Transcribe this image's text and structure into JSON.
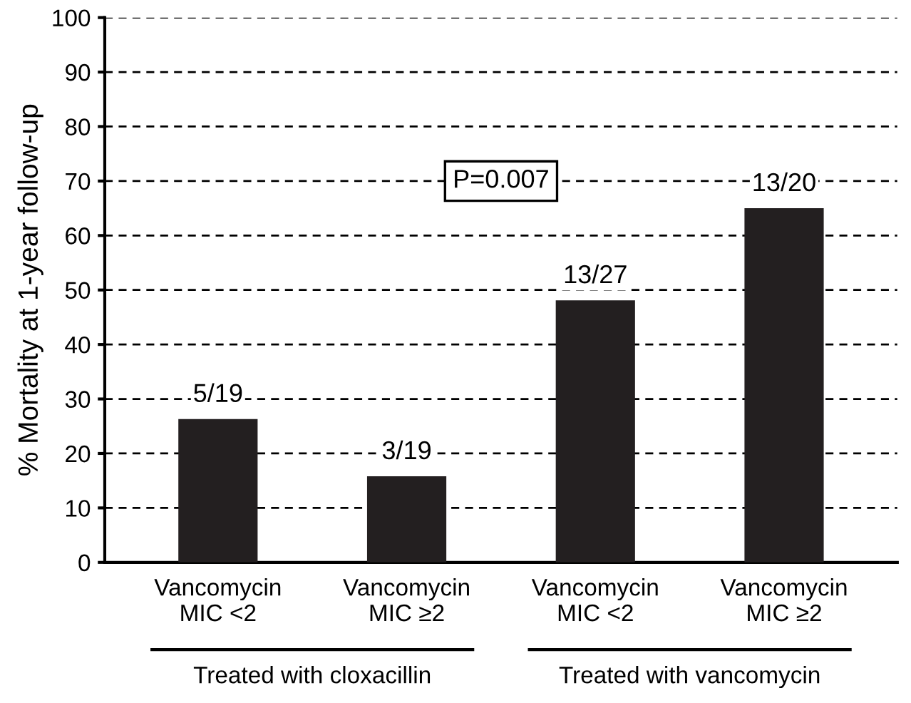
{
  "chart_data": {
    "type": "bar",
    "ylabel": "% Mortality at 1-year follow-up",
    "categories": [
      "Vancomycin\nMIC <2",
      "Vancomycin\nMIC ≥2",
      "Vancomycin\nMIC <2",
      "Vancomycin\nMIC ≥2"
    ],
    "values": [
      26.3,
      15.8,
      48.1,
      65
    ],
    "value_labels": [
      "5/19",
      "3/19",
      "13/27",
      "13/20"
    ],
    "color": "#231f20",
    "ylim": [
      0,
      100
    ],
    "yticks": [
      0,
      10,
      20,
      30,
      40,
      50,
      60,
      70,
      80,
      90,
      100
    ],
    "grid": "y",
    "annotations": [
      "P=0.007",
      "Treated with cloxacillin",
      "Treated with vancomycin"
    ]
  }
}
